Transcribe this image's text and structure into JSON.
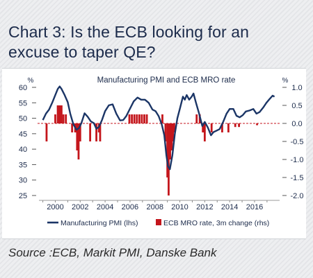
{
  "heading": "Chart 3: Is the ECB looking for an excuse to taper QE?",
  "source": "Source :ECB, Markit PMI, Danske Bank",
  "colors": {
    "pmi": "#1b3566",
    "mro": "#c4161c",
    "text": "#1b2a4a",
    "zero": "#c4161c"
  },
  "chart_data": {
    "type": "line",
    "title": "Manufacturing PMI and ECB MRO rate",
    "left_axis": {
      "unit": "%",
      "ylim": [
        25,
        60
      ],
      "ticks": [
        "60",
        "55",
        "50",
        "45",
        "40",
        "35",
        "30",
        "25"
      ]
    },
    "right_axis": {
      "unit": "%",
      "ylim": [
        -2.0,
        1.0
      ],
      "ticks": [
        "1.0",
        "0.5",
        "0.0",
        "-0.5",
        "-1.0",
        "-1.5",
        "-2.0"
      ]
    },
    "x_axis": {
      "range": [
        1998.8,
        2017.9
      ],
      "ticks": [
        "2000",
        "2002",
        "2004",
        "2006",
        "2008",
        "2010",
        "2012",
        "2014",
        "2016"
      ]
    },
    "legend": {
      "pmi_label": "Manufacturing PMI (lhs)",
      "mro_label": "ECB MRO rate, 3m change (rhs)",
      "placement": "bottom"
    },
    "series": [
      {
        "name": "Manufacturing PMI (lhs)",
        "axis": "left",
        "points": [
          [
            1999.0,
            49.4
          ],
          [
            1999.25,
            51.5
          ],
          [
            1999.5,
            52.8
          ],
          [
            1999.75,
            55.0
          ],
          [
            2000.0,
            57.5
          ],
          [
            2000.2,
            59.5
          ],
          [
            2000.35,
            60.3
          ],
          [
            2000.5,
            59.5
          ],
          [
            2000.75,
            57.5
          ],
          [
            2001.0,
            55.2
          ],
          [
            2001.2,
            51.5
          ],
          [
            2001.45,
            48.0
          ],
          [
            2001.7,
            46.3
          ],
          [
            2001.9,
            46.8
          ],
          [
            2002.1,
            48.5
          ],
          [
            2002.35,
            51.6
          ],
          [
            2002.6,
            50.5
          ],
          [
            2002.85,
            49.0
          ],
          [
            2003.1,
            48.4
          ],
          [
            2003.3,
            46.6
          ],
          [
            2003.5,
            47.2
          ],
          [
            2003.75,
            49.4
          ],
          [
            2004.0,
            52.3
          ],
          [
            2004.3,
            54.2
          ],
          [
            2004.6,
            54.5
          ],
          [
            2004.9,
            51.5
          ],
          [
            2005.2,
            49.3
          ],
          [
            2005.45,
            49.4
          ],
          [
            2005.7,
            50.7
          ],
          [
            2005.95,
            52.7
          ],
          [
            2006.3,
            55.5
          ],
          [
            2006.6,
            56.7
          ],
          [
            2006.9,
            56.0
          ],
          [
            2007.2,
            56.0
          ],
          [
            2007.5,
            55.0
          ],
          [
            2007.8,
            52.8
          ],
          [
            2008.05,
            52.3
          ],
          [
            2008.3,
            50.7
          ],
          [
            2008.55,
            48.0
          ],
          [
            2008.75,
            44.5
          ],
          [
            2008.92,
            38.0
          ],
          [
            2009.05,
            34.5
          ],
          [
            2009.2,
            33.5
          ],
          [
            2009.4,
            38.0
          ],
          [
            2009.6,
            45.0
          ],
          [
            2009.8,
            50.0
          ],
          [
            2010.0,
            53.0
          ],
          [
            2010.25,
            57.0
          ],
          [
            2010.4,
            56.0
          ],
          [
            2010.55,
            57.5
          ],
          [
            2010.75,
            56.0
          ],
          [
            2010.95,
            57.0
          ],
          [
            2011.1,
            58.0
          ],
          [
            2011.3,
            55.0
          ],
          [
            2011.55,
            51.5
          ],
          [
            2011.8,
            47.5
          ],
          [
            2012.0,
            48.8
          ],
          [
            2012.25,
            47.0
          ],
          [
            2012.5,
            44.5
          ],
          [
            2012.7,
            45.5
          ],
          [
            2012.95,
            46.0
          ],
          [
            2013.2,
            46.5
          ],
          [
            2013.5,
            49.0
          ],
          [
            2013.75,
            51.5
          ],
          [
            2014.0,
            53.0
          ],
          [
            2014.3,
            53.0
          ],
          [
            2014.55,
            50.8
          ],
          [
            2014.8,
            50.3
          ],
          [
            2015.05,
            51.0
          ],
          [
            2015.3,
            52.2
          ],
          [
            2015.6,
            52.5
          ],
          [
            2015.9,
            53.0
          ],
          [
            2016.15,
            51.5
          ],
          [
            2016.4,
            52.0
          ],
          [
            2016.7,
            53.5
          ],
          [
            2016.95,
            55.0
          ],
          [
            2017.2,
            56.2
          ],
          [
            2017.45,
            57.3
          ],
          [
            2017.6,
            57.0
          ]
        ]
      },
      {
        "name": "ECB MRO rate, 3m change (rhs)",
        "axis": "right",
        "bars": [
          [
            1999.3,
            -0.5
          ],
          [
            2000.0,
            0.25
          ],
          [
            2000.2,
            0.5
          ],
          [
            2000.35,
            0.5
          ],
          [
            2000.5,
            0.5
          ],
          [
            2000.65,
            0.25
          ],
          [
            2000.85,
            0.25
          ],
          [
            2001.35,
            -0.25
          ],
          [
            2001.6,
            -0.25
          ],
          [
            2001.75,
            -0.75
          ],
          [
            2001.87,
            -1.0
          ],
          [
            2002.0,
            -0.5
          ],
          [
            2002.8,
            -0.5
          ],
          [
            2003.3,
            -0.5
          ],
          [
            2003.5,
            -0.25
          ],
          [
            2003.6,
            -0.5
          ],
          [
            2005.95,
            0.25
          ],
          [
            2006.15,
            0.25
          ],
          [
            2006.35,
            0.25
          ],
          [
            2006.55,
            0.25
          ],
          [
            2006.75,
            0.25
          ],
          [
            2006.95,
            0.25
          ],
          [
            2007.15,
            0.25
          ],
          [
            2007.35,
            0.25
          ],
          [
            2008.6,
            0.25
          ],
          [
            2008.85,
            -0.5
          ],
          [
            2009.0,
            -1.5
          ],
          [
            2009.1,
            -2.0
          ],
          [
            2009.22,
            -1.0
          ],
          [
            2009.35,
            -0.75
          ],
          [
            2009.45,
            -0.5
          ],
          [
            2009.55,
            -0.25
          ],
          [
            2011.35,
            0.25
          ],
          [
            2011.6,
            0.25
          ],
          [
            2011.85,
            -0.25
          ],
          [
            2012.0,
            -0.5
          ],
          [
            2012.55,
            -0.25
          ],
          [
            2013.4,
            -0.25
          ],
          [
            2013.9,
            -0.25
          ],
          [
            2014.45,
            -0.1
          ],
          [
            2014.75,
            -0.1
          ],
          [
            2016.2,
            -0.05
          ]
        ]
      }
    ]
  }
}
